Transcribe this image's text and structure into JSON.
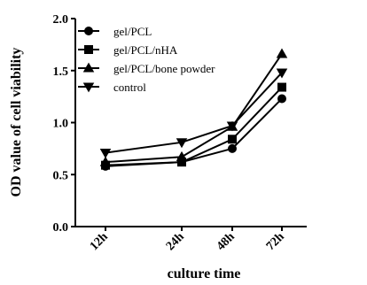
{
  "chart_data": {
    "type": "line",
    "x": [
      "12h",
      "24h",
      "48h",
      "72h"
    ],
    "xlabel": "culture time",
    "ylabel": "OD value of cell viability",
    "ylim": [
      0.0,
      2.0
    ],
    "yticks": [
      "0.0",
      "0.5",
      "1.0",
      "1.5",
      "2.0"
    ],
    "legend_position": "top-left",
    "grid": false,
    "series": [
      {
        "name": "gel/PCL",
        "marker": "circle",
        "values": [
          0.58,
          0.62,
          0.75,
          1.23
        ]
      },
      {
        "name": "gel/PCL/nHA",
        "marker": "square",
        "values": [
          0.59,
          0.62,
          0.84,
          1.34
        ]
      },
      {
        "name": "gel/PCL/bone powder",
        "marker": "triangle-up",
        "values": [
          0.62,
          0.67,
          0.96,
          1.66
        ]
      },
      {
        "name": "control",
        "marker": "triangle-down",
        "values": [
          0.71,
          0.81,
          0.97,
          1.48
        ]
      }
    ]
  }
}
